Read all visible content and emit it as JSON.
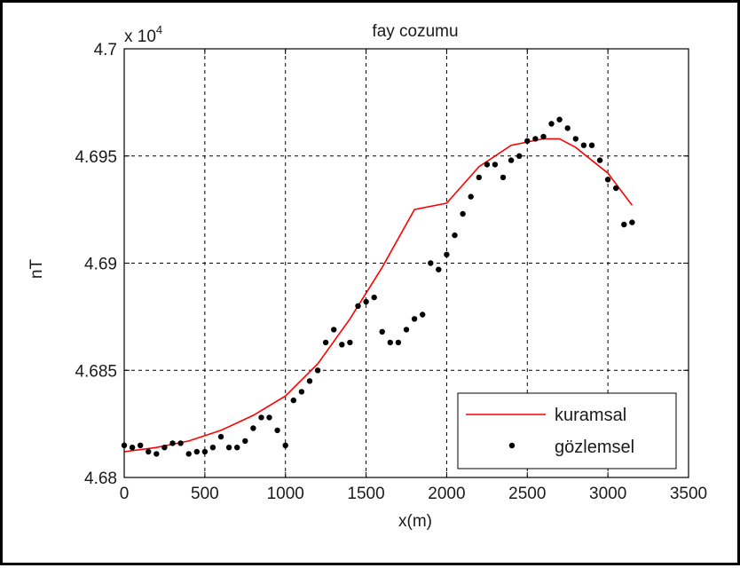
{
  "chart_data": {
    "type": "scatter",
    "title": "fay cozumu",
    "xlabel": "x(m)",
    "ylabel": "nT",
    "y_exponent_label": "x 10",
    "y_exponent_power": "4",
    "xlim": [
      0,
      3500
    ],
    "ylim": [
      46800,
      47000
    ],
    "x_ticks": [
      0,
      500,
      1000,
      1500,
      2000,
      2500,
      3000,
      3500
    ],
    "x_tick_labels": [
      "0",
      "500",
      "1000",
      "1500",
      "2000",
      "2500",
      "3000",
      "3500"
    ],
    "y_ticks": [
      46800,
      46850,
      46900,
      46950,
      47000
    ],
    "y_tick_labels": [
      "4.68",
      "4.685",
      "4.69",
      "4.695",
      "4.7"
    ],
    "grid": true,
    "legend_position": "bottom-right",
    "series": [
      {
        "name": "kuramsal",
        "style": "line",
        "color": "#ff0000",
        "x": [
          0,
          200,
          400,
          600,
          800,
          1000,
          1200,
          1400,
          1600,
          1800,
          2000,
          2200,
          2400,
          2600,
          2700,
          2800,
          3000,
          3150
        ],
        "y": [
          46812,
          46814,
          46817,
          46822,
          46829,
          46838,
          46853,
          46874,
          46898,
          46925,
          46928,
          46945,
          46955,
          46958,
          46958,
          46954,
          46942,
          46927
        ]
      },
      {
        "name": "gözlemsel",
        "style": "marker",
        "color": "#000000",
        "x": [
          0,
          50,
          100,
          150,
          200,
          250,
          300,
          350,
          400,
          450,
          500,
          550,
          600,
          650,
          700,
          750,
          800,
          850,
          900,
          950,
          1000,
          1050,
          1100,
          1150,
          1200,
          1250,
          1300,
          1350,
          1400,
          1450,
          1500,
          1550,
          1600,
          1650,
          1700,
          1750,
          1800,
          1850,
          1900,
          1950,
          2000,
          2050,
          2100,
          2150,
          2200,
          2250,
          2300,
          2350,
          2400,
          2450,
          2500,
          2550,
          2600,
          2650,
          2700,
          2750,
          2800,
          2850,
          2900,
          2950,
          3000,
          3050,
          3100,
          3150
        ],
        "y": [
          46815,
          46814,
          46815,
          46812,
          46811,
          46814,
          46816,
          46816,
          46811,
          46812,
          46812,
          46814,
          46819,
          46814,
          46814,
          46817,
          46823,
          46828,
          46828,
          46822,
          46815,
          46836,
          46840,
          46845,
          46850,
          46863,
          46869,
          46862,
          46863,
          46880,
          46882,
          46884,
          46868,
          46863,
          46863,
          46869,
          46874,
          46876,
          46900,
          46897,
          46904,
          46913,
          46923,
          46931,
          46940,
          46946,
          46946,
          46940,
          46948,
          46950,
          46957,
          46958,
          46959,
          46965,
          46967,
          46963,
          46958,
          46955,
          46955,
          46948,
          46939,
          46935,
          46918,
          46919
        ]
      }
    ]
  }
}
